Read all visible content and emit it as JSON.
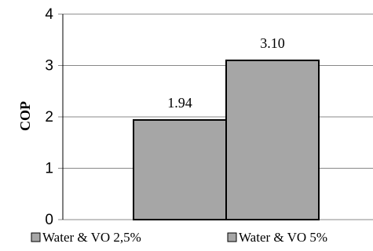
{
  "chart_data": {
    "type": "bar",
    "title": "",
    "xlabel": "",
    "ylabel": "COP",
    "ylim": [
      0,
      4
    ],
    "yticks": [
      "0",
      "1",
      "2",
      "3",
      "4"
    ],
    "grid": true,
    "legend_position": "bottom",
    "series": [
      {
        "name": "Water & VO 2,5%",
        "value": 1.94,
        "label": "1.94",
        "color": "#a6a6a6"
      },
      {
        "name": "Water & VO 5%",
        "value": 3.1,
        "label": "3.10",
        "color": "#a6a6a6"
      }
    ]
  }
}
